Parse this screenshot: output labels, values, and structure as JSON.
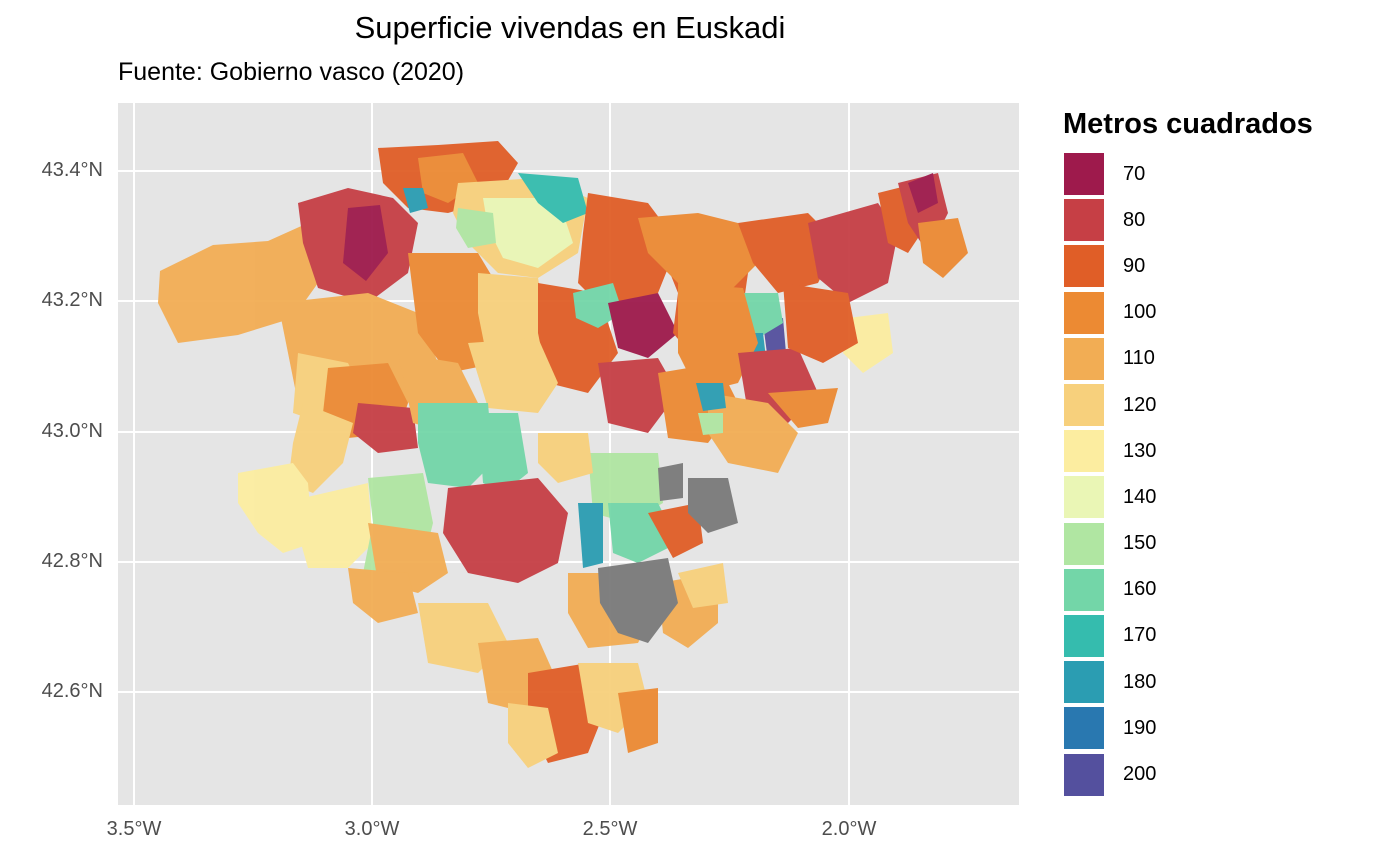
{
  "title": "Superficie vivendas en Euskadi",
  "subtitle": "Fuente: Gobierno vasco (2020)",
  "axes": {
    "y_ticks": [
      {
        "label": "43.4°N",
        "value": 43.4
      },
      {
        "label": "43.2°N",
        "value": 43.2
      },
      {
        "label": "43.0°N",
        "value": 43.0
      },
      {
        "label": "42.8°N",
        "value": 42.8
      },
      {
        "label": "42.6°N",
        "value": 42.6
      }
    ],
    "x_ticks": [
      {
        "label": "3.5°W",
        "value": -3.5
      },
      {
        "label": "3.0°W",
        "value": -3.0
      },
      {
        "label": "2.5°W",
        "value": -2.5
      },
      {
        "label": "2.0°W",
        "value": -2.0
      }
    ],
    "xlim": [
      -3.53,
      -1.65
    ],
    "ylim": [
      42.44,
      43.52
    ]
  },
  "legend": {
    "title": "Metros cuadrados",
    "items": [
      {
        "label": "70",
        "color": "#9E1A4C"
      },
      {
        "label": "80",
        "color": "#C63F45"
      },
      {
        "label": "90",
        "color": "#E05E27"
      },
      {
        "label": "100",
        "color": "#EC8A33"
      },
      {
        "label": "110",
        "color": "#F2AD54"
      },
      {
        "label": "120",
        "color": "#F7D07C"
      },
      {
        "label": "130",
        "color": "#FCEDA0"
      },
      {
        "label": "140",
        "color": "#EAF6B5"
      },
      {
        "label": "150",
        "color": "#B0E6A2"
      },
      {
        "label": "160",
        "color": "#73D6A8"
      },
      {
        "label": "170",
        "color": "#35BCAE"
      },
      {
        "label": "180",
        "color": "#2B9DB2"
      },
      {
        "label": "190",
        "color": "#2978B0"
      },
      {
        "label": "200",
        "color": "#54509E"
      }
    ]
  },
  "colors": {
    "panel_background": "#E5E5E5",
    "grid": "#FFFFFF",
    "missing_data": "#7A7A7A"
  }
}
